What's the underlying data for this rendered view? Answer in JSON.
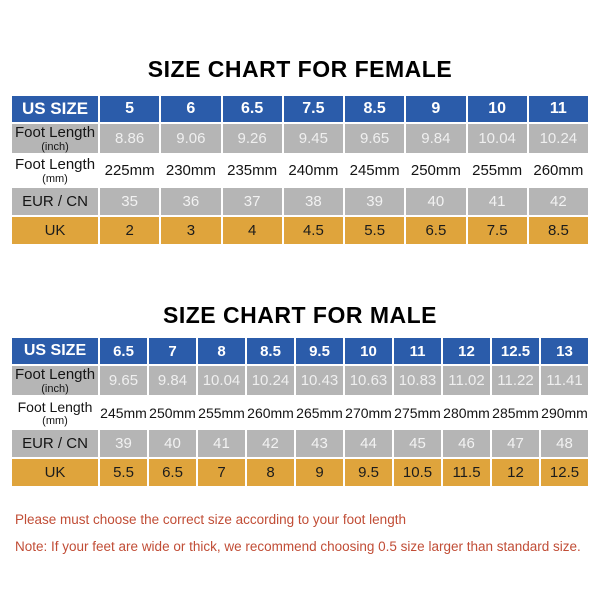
{
  "colors": {
    "header_blue": "#2b5caa",
    "row_gray": "#b5b5b5",
    "uk_gold": "#dfa43c",
    "note_red": "#c14d36"
  },
  "chart_data": [
    {
      "type": "table",
      "name": "female-size-chart",
      "title": "SIZE CHART FOR FEMALE",
      "rows": [
        {
          "label": "US SIZE",
          "sublabel": "",
          "style": "header",
          "values": [
            "5",
            "6",
            "6.5",
            "7.5",
            "8.5",
            "9",
            "10",
            "11"
          ]
        },
        {
          "label": "Foot Length",
          "sublabel": "(inch)",
          "style": "inch",
          "values": [
            "8.86",
            "9.06",
            "9.26",
            "9.45",
            "9.65",
            "9.84",
            "10.04",
            "10.24"
          ]
        },
        {
          "label": "Foot Length",
          "sublabel": "(mm)",
          "style": "mm",
          "values": [
            "225mm",
            "230mm",
            "235mm",
            "240mm",
            "245mm",
            "250mm",
            "255mm",
            "260mm"
          ]
        },
        {
          "label": "EUR / CN",
          "sublabel": "",
          "style": "eur",
          "values": [
            "35",
            "36",
            "37",
            "38",
            "39",
            "40",
            "41",
            "42"
          ]
        },
        {
          "label": "UK",
          "sublabel": "",
          "style": "uk",
          "values": [
            "2",
            "3",
            "4",
            "4.5",
            "5.5",
            "6.5",
            "7.5",
            "8.5"
          ]
        }
      ]
    },
    {
      "type": "table",
      "name": "male-size-chart",
      "title": "SIZE CHART FOR MALE",
      "rows": [
        {
          "label": "US SIZE",
          "sublabel": "",
          "style": "header",
          "values": [
            "6.5",
            "7",
            "8",
            "8.5",
            "9.5",
            "10",
            "11",
            "12",
            "12.5",
            "13"
          ]
        },
        {
          "label": "Foot Length",
          "sublabel": "(inch)",
          "style": "inch",
          "values": [
            "9.65",
            "9.84",
            "10.04",
            "10.24",
            "10.43",
            "10.63",
            "10.83",
            "11.02",
            "11.22",
            "11.41"
          ]
        },
        {
          "label": "Foot Length",
          "sublabel": "(mm)",
          "style": "mm",
          "values": [
            "245mm",
            "250mm",
            "255mm",
            "260mm",
            "265mm",
            "270mm",
            "275mm",
            "280mm",
            "285mm",
            "290mm"
          ]
        },
        {
          "label": "EUR / CN",
          "sublabel": "",
          "style": "eur",
          "values": [
            "39",
            "40",
            "41",
            "42",
            "43",
            "44",
            "45",
            "46",
            "47",
            "48"
          ]
        },
        {
          "label": "UK",
          "sublabel": "",
          "style": "uk",
          "values": [
            "5.5",
            "6.5",
            "7",
            "8",
            "9",
            "9.5",
            "10.5",
            "11.5",
            "12",
            "12.5"
          ]
        }
      ]
    }
  ],
  "notes": [
    "Please must choose the correct size  according to your foot length",
    "Note: If your feet are wide or thick, we recommend choosing 0.5 size larger than standard size."
  ]
}
